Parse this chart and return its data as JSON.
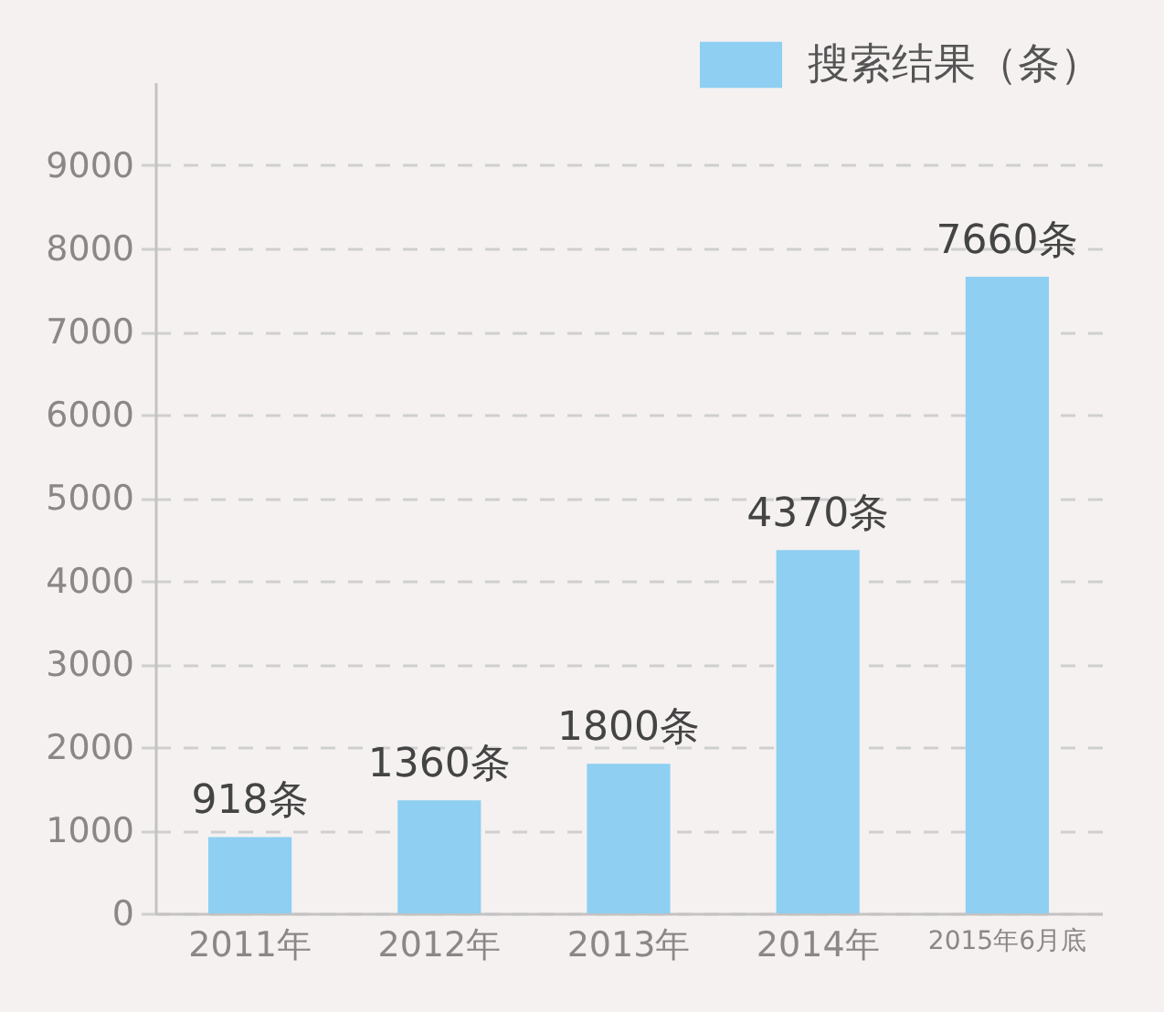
{
  "chart_data": {
    "type": "bar",
    "categories": [
      "2011年",
      "2012年",
      "2013年",
      "2014年",
      "2015年6月底"
    ],
    "series": [
      {
        "name": "搜索结果（条）",
        "color": "#8ecff2",
        "values": [
          918,
          1360,
          1800,
          4370,
          7660
        ]
      }
    ],
    "value_labels": [
      "918条",
      "1360条",
      "1800条",
      "4370条",
      "7660条"
    ],
    "ylim": [
      0,
      10000
    ],
    "yticks": [
      0,
      1000,
      2000,
      3000,
      4000,
      5000,
      6000,
      7000,
      8000,
      9000
    ],
    "grid": "y",
    "legend": "top right"
  }
}
